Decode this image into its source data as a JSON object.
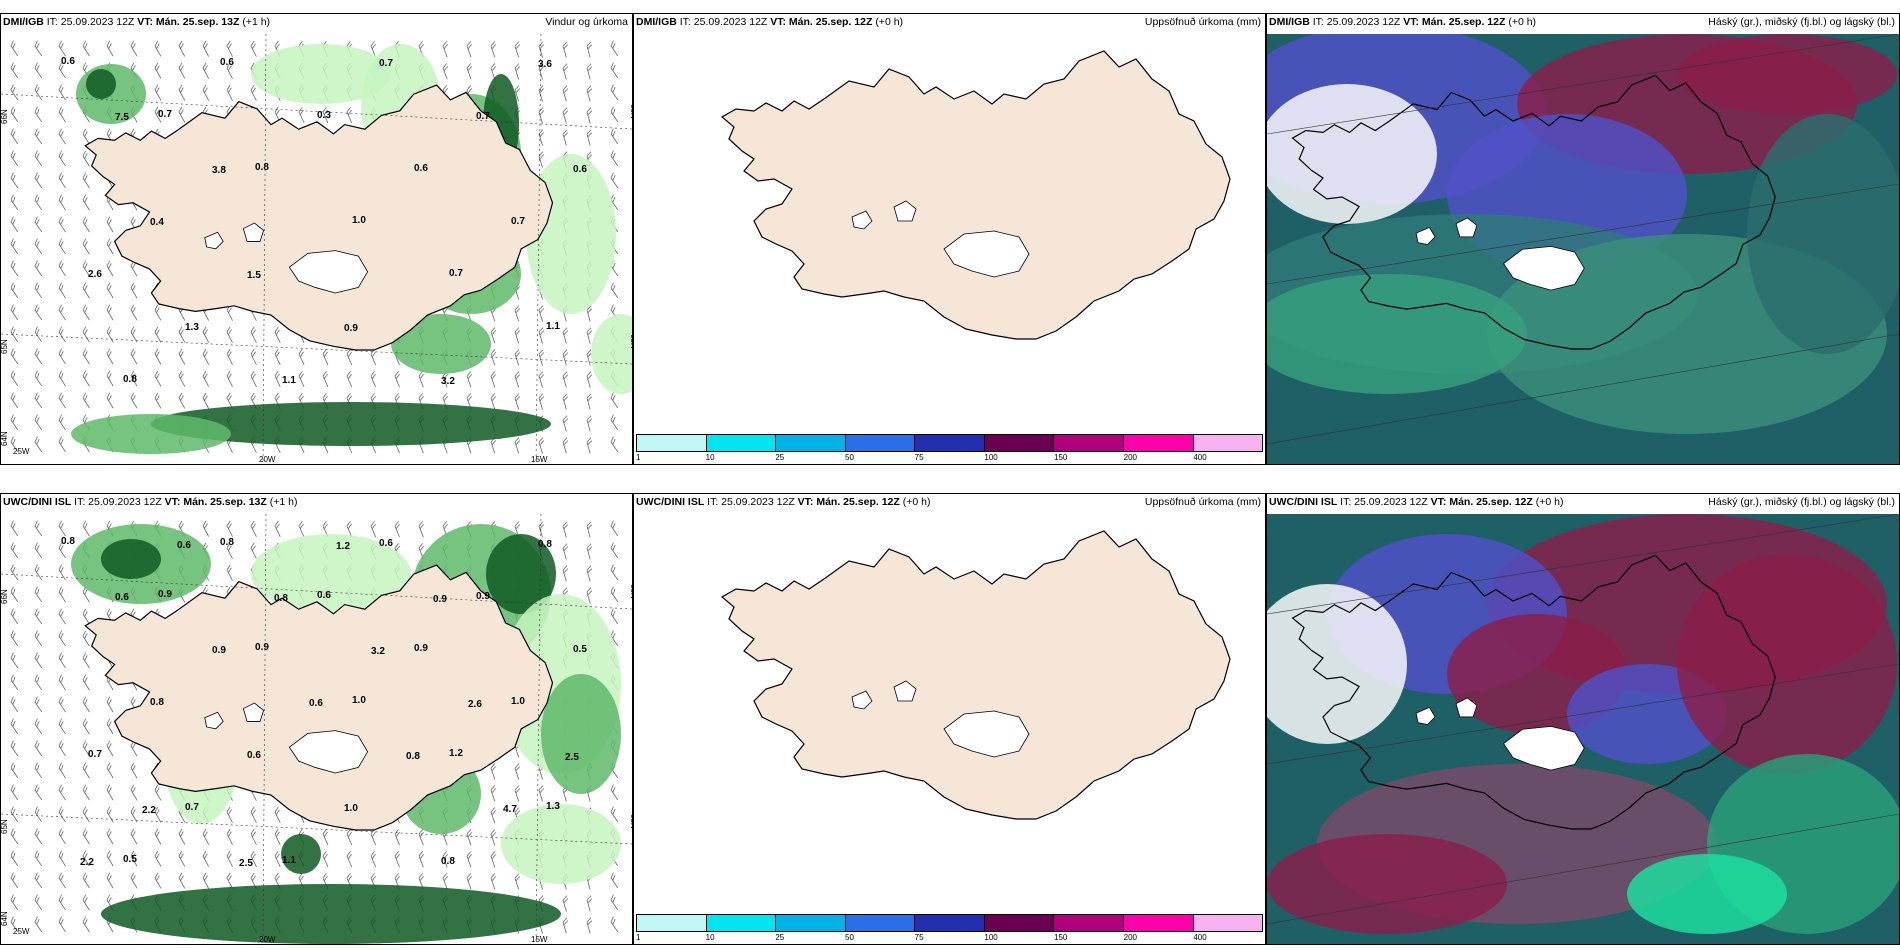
{
  "rows": [
    {
      "wind": {
        "model": "DMI/IGB",
        "it": "IT: 25.09.2023 12Z",
        "vt": "VT: Mán. 25.sep. 13Z",
        "lead": "(+1 h)",
        "title_right": "Vindur og úrkoma",
        "labels": [
          "0.6",
          "0.7",
          "0.8",
          "1.0",
          "0.7",
          "1.1",
          "0.8",
          "0.6",
          "0.3",
          "0.6",
          "0.7",
          "2.6",
          "1.3",
          "1.1",
          "0.7",
          "0.7",
          "0.6",
          "0.4",
          "1.5",
          "0.9",
          "3.2",
          "3.6",
          "7.5",
          "3.8"
        ],
        "axis": [
          "66N",
          "65N",
          "64N",
          "66N",
          "65N",
          "25W",
          "20W",
          "15W"
        ]
      },
      "precip": {
        "model": "DMI/IGB",
        "it": "IT: 25.09.2023 12Z",
        "vt": "VT: Mán. 25.sep. 12Z",
        "lead": "(+0 h)",
        "title_right": "Uppsöfnuð úrkoma (mm)"
      },
      "cloud": {
        "model": "DMI/IGB",
        "it": "IT: 25.09.2023 12Z",
        "vt": "VT: Mán. 25.sep. 12Z",
        "lead": "(+0 h)",
        "title_right": "Háský (gr.), miðský (fj.bl.) og lágský (bl.)"
      }
    },
    {
      "wind": {
        "model": "UWC/DINI ISL",
        "it": "IT: 25.09.2023 12Z",
        "vt": "VT: Mán. 25.sep. 13Z",
        "lead": "(+1 h)",
        "title_right": "",
        "labels": [
          "0.8",
          "0.9",
          "0.9",
          "1.0",
          "1.2",
          "1.3",
          "0.5",
          "0.8",
          "0.6",
          "0.9",
          "1.0",
          "0.7",
          "0.7",
          "1.1",
          "0.6",
          "0.9",
          "0.5",
          "0.8",
          "0.6",
          "1.0",
          "0.8",
          "0.8",
          "0.6",
          "0.9",
          "0.6",
          "0.8",
          "4.7",
          "2.2",
          "0.6",
          "0.8",
          "3.2",
          "2.6",
          "2.5",
          "2.2",
          "2.5",
          "1.2",
          "0.9"
        ],
        "axis": [
          "66N",
          "65N",
          "64N",
          "66N",
          "65N",
          "25W",
          "20W",
          "15W"
        ]
      },
      "precip": {
        "model": "UWC/DINI ISL",
        "it": "IT: 25.09.2023 12Z",
        "vt": "VT: Mán. 25.sep. 12Z",
        "lead": "(+0 h)",
        "title_right": "Uppsöfnuð úrkoma (mm)"
      },
      "cloud": {
        "model": "UWC/DINI ISL",
        "it": "IT: 25.09.2023 12Z",
        "vt": "VT: Mán. 25.sep. 12Z",
        "lead": "(+0 h)",
        "title_right": "Háský (gr.), miðský (fj.bl.) og lágský (bl.)"
      }
    }
  ],
  "colorbar": {
    "ticks": [
      "1",
      "10",
      "25",
      "50",
      "75",
      "100",
      "150",
      "200",
      "400"
    ],
    "colors": [
      "#bff7f7",
      "#00e5ee",
      "#00b3e6",
      "#2a6fe8",
      "#2230b0",
      "#6a0050",
      "#b0007e",
      "#ff00aa",
      "#f7b3f0"
    ]
  },
  "colors": {
    "land": "#f5e6d8",
    "green_light": "#c6f5c0",
    "green_mid": "#5fb86a",
    "green_dark": "#0f5a22",
    "high_cloud": "#8a1f4a",
    "mid_cloud": "#5050c8",
    "low_cloud": "#2f7a7a"
  }
}
